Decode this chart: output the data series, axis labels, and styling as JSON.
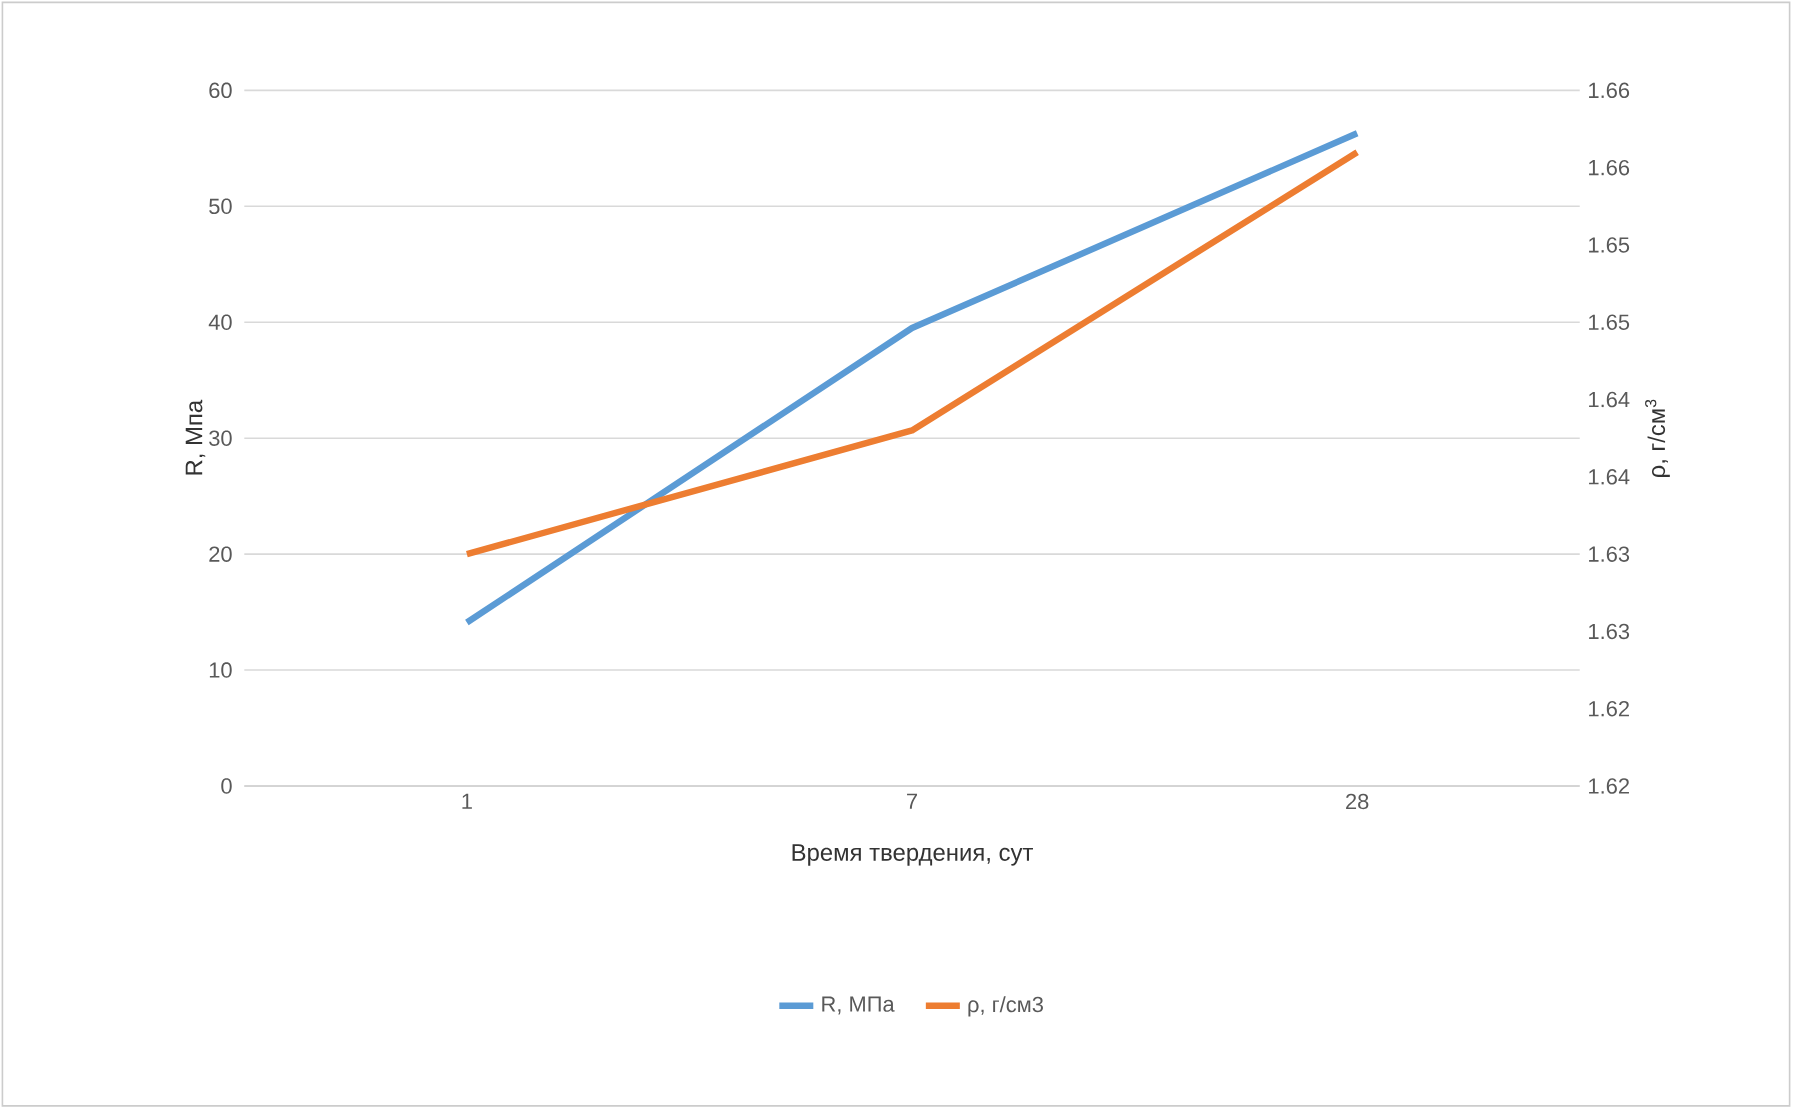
{
  "chart_data": {
    "type": "line",
    "xlabel": "Время твердения, сут",
    "ylabel": "R, Мпа",
    "y2label": "ρ, г/см$^{3}$",
    "categories": [
      "1",
      "7",
      "28"
    ],
    "series": [
      {
        "name": "R, МПа",
        "color": "#5b9bd5",
        "values": [
          14.1,
          39.5,
          56.3
        ]
      },
      {
        "name": "ρ, г/см3",
        "color": "#ed7d31",
        "axis": "y2",
        "values": [
          1.635,
          1.643,
          1.661
        ]
      }
    ],
    "ylim": [
      0,
      60
    ],
    "yticks": [
      0,
      10,
      20,
      30,
      40,
      50,
      60
    ],
    "y2lim": [
      1.62,
      1.665
    ],
    "y2ticks": [
      {
        "value": 1.62,
        "label": "1.62"
      },
      {
        "value": 1.625,
        "label": "1.62"
      },
      {
        "value": 1.63,
        "label": "1.63"
      },
      {
        "value": 1.635,
        "label": "1.63"
      },
      {
        "value": 1.64,
        "label": "1.64"
      },
      {
        "value": 1.645,
        "label": "1.64"
      },
      {
        "value": 1.65,
        "label": "1.65"
      },
      {
        "value": 1.655,
        "label": "1.65"
      },
      {
        "value": 1.66,
        "label": "1.66"
      },
      {
        "value": 1.665,
        "label": "1.66"
      }
    ],
    "grid": "y",
    "legend": "bottom",
    "marker": "none",
    "line_style": "solid"
  }
}
